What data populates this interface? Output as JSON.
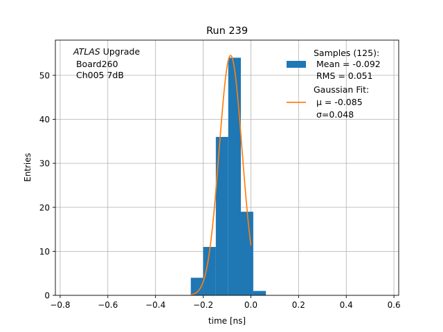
{
  "chart_data": {
    "type": "bar",
    "title": "Run 239",
    "xlabel": "time [ns]",
    "ylabel": "Entries",
    "xlim": [
      -0.82,
      0.62
    ],
    "ylim": [
      0,
      58
    ],
    "grid": true,
    "x_ticks": [
      -0.8,
      -0.6,
      -0.4,
      -0.2,
      0.0,
      0.2,
      0.4,
      0.6
    ],
    "x_tick_labels": [
      "−0.8",
      "−0.6",
      "−0.4",
      "−0.2",
      "0.0",
      "0.2",
      "0.4",
      "0.6"
    ],
    "y_ticks": [
      0,
      10,
      20,
      30,
      40,
      50
    ],
    "y_tick_labels": [
      "0",
      "10",
      "20",
      "30",
      "40",
      "50"
    ],
    "annotation": {
      "experiment": "ATLAS",
      "experiment_suffix": " Upgrade",
      "line2": " Board260",
      "line3": " Ch005 7dB"
    },
    "histogram": {
      "color": "#1f77b4",
      "bins": [
        {
          "x0": -0.252,
          "x1": -0.2,
          "count": 4
        },
        {
          "x0": -0.2,
          "x1": -0.147,
          "count": 11
        },
        {
          "x0": -0.147,
          "x1": -0.095,
          "count": 36
        },
        {
          "x0": -0.095,
          "x1": -0.042,
          "count": 54
        },
        {
          "x0": -0.042,
          "x1": 0.01,
          "count": 19
        },
        {
          "x0": 0.01,
          "x1": 0.063,
          "count": 1
        }
      ]
    },
    "fit": {
      "type": "gaussian",
      "color": "#ff7f0e",
      "amplitude": 54.5,
      "mu": -0.085,
      "sigma": 0.048,
      "x_range": [
        -0.252,
        0.0
      ]
    },
    "legend": {
      "position": "upper right",
      "samples_lines": [
        "Samples (125):",
        " Mean = -0.092",
        " RMS = 0.051"
      ],
      "fit_lines": [
        "Gaussian Fit:",
        " μ = -0.085",
        " σ=0.048"
      ]
    }
  }
}
